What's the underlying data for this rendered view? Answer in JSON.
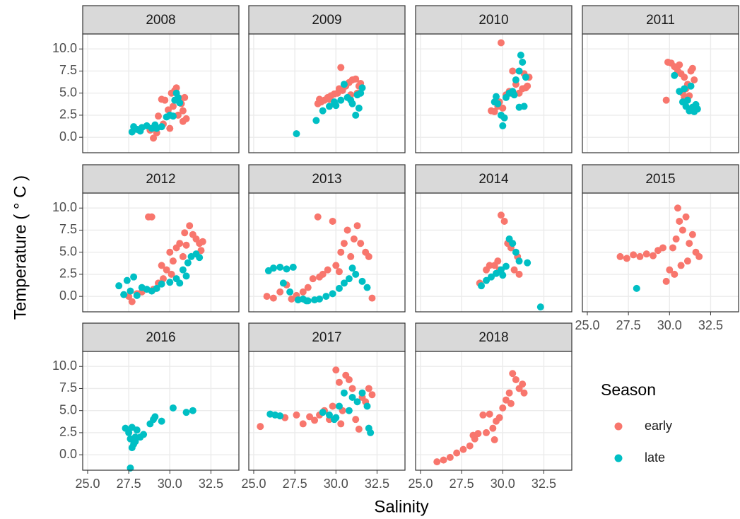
{
  "chart_data": {
    "type": "scatter",
    "x_label": "Salinity",
    "y_label": "Temperature ( ° C )",
    "legend_title": "Season",
    "series": [
      {
        "name": "early",
        "color": "#F8766D"
      },
      {
        "name": "late",
        "color": "#00BFC4"
      }
    ],
    "xlim": [
      24.7,
      34.2
    ],
    "ylim": [
      -1.75,
      11.7
    ],
    "xticks": [
      {
        "value": 25,
        "label": "25.0"
      },
      27.5,
      {
        "value": 30,
        "label": "30.0"
      },
      32.5
    ],
    "yticks": [
      {
        "value": 0,
        "label": "0.0"
      },
      2.5,
      {
        "value": 5,
        "label": "5.0"
      },
      7.5,
      {
        "value": 10,
        "label": "10.0"
      }
    ],
    "grid": true,
    "panels": [
      {
        "title": "2008",
        "series": [
          {
            "x": [
              29.0,
              29.2,
              29.3,
              29.5,
              29.7,
              29.9,
              30.0,
              30.2,
              30.3,
              30.4,
              30.5,
              30.6,
              30.7,
              30.8,
              30.9,
              31.0,
              30.8,
              28.8,
              29.6,
              30.1
            ],
            "y": [
              -0.1,
              0.5,
              2.4,
              4.3,
              4.2,
              3.1,
              1.0,
              3.5,
              5.3,
              5.6,
              2.5,
              4.4,
              3.8,
              3.0,
              4.5,
              2.1,
              1.8,
              0.8,
              1.5,
              5.0
            ]
          },
          {
            "x": [
              27.7,
              27.8,
              28.0,
              28.3,
              28.6,
              28.9,
              29.2,
              29.5,
              29.8,
              30.0,
              30.2,
              30.3,
              30.4,
              30.5,
              30.6,
              29.1,
              28.2
            ],
            "y": [
              0.6,
              1.2,
              0.9,
              1.1,
              1.3,
              1.0,
              1.0,
              1.2,
              2.3,
              2.5,
              2.4,
              4.2,
              5.0,
              4.5,
              3.9,
              1.4,
              0.7
            ]
          }
        ]
      },
      {
        "title": "2009",
        "series": [
          {
            "x": [
              28.9,
              29.1,
              29.3,
              29.5,
              29.7,
              29.9,
              30.1,
              30.3,
              30.4,
              30.6,
              30.8,
              31.0,
              31.2,
              31.4,
              31.5,
              31.3,
              30.9,
              29.0,
              29.6,
              30.2
            ],
            "y": [
              3.8,
              4.0,
              4.2,
              4.5,
              4.7,
              4.9,
              5.0,
              7.9,
              5.3,
              5.8,
              6.2,
              6.5,
              6.6,
              5.8,
              6.1,
              5.0,
              4.8,
              4.3,
              4.3,
              5.5
            ]
          },
          {
            "x": [
              27.6,
              28.8,
              29.2,
              29.6,
              30.0,
              30.3,
              30.5,
              30.7,
              31.0,
              31.3,
              31.5,
              31.6,
              31.4,
              31.2,
              30.9,
              29.9
            ],
            "y": [
              0.4,
              1.9,
              3.0,
              3.5,
              3.6,
              4.2,
              6.0,
              4.5,
              3.8,
              4.8,
              5.0,
              5.6,
              3.3,
              2.5,
              4.2,
              4.0
            ]
          }
        ]
      },
      {
        "title": "2010",
        "series": [
          {
            "x": [
              29.3,
              29.5,
              29.7,
              29.9,
              30.0,
              30.2,
              30.4,
              30.6,
              30.8,
              31.0,
              31.2,
              31.4,
              31.5,
              31.6,
              31.3,
              30.5,
              29.8
            ],
            "y": [
              3.0,
              2.9,
              3.5,
              10.7,
              3.3,
              4.8,
              5.2,
              7.5,
              6.0,
              5.0,
              5.5,
              5.6,
              5.8,
              6.8,
              7.2,
              5.0,
              4.0
            ]
          },
          {
            "x": [
              29.5,
              29.7,
              29.9,
              30.0,
              30.1,
              30.2,
              30.4,
              30.6,
              30.8,
              31.0,
              31.1,
              31.2,
              31.3,
              31.0,
              30.7,
              31.4,
              29.6
            ],
            "y": [
              4.0,
              3.8,
              2.5,
              1.3,
              2.2,
              4.5,
              5.0,
              5.2,
              6.5,
              7.5,
              9.3,
              8.5,
              3.5,
              3.4,
              4.8,
              6.8,
              4.6
            ]
          }
        ]
      },
      {
        "title": "2011",
        "series": [
          {
            "x": [
              29.8,
              29.9,
              30.1,
              30.3,
              30.5,
              30.7,
              30.9,
              31.1,
              31.3,
              31.5,
              31.0,
              30.8,
              31.2,
              30.6,
              31.4,
              30.9
            ],
            "y": [
              4.2,
              8.5,
              8.4,
              8.0,
              7.5,
              7.2,
              6.8,
              6.0,
              7.5,
              6.5,
              5.5,
              5.0,
              4.7,
              8.2,
              7.8,
              4.5
            ]
          },
          {
            "x": [
              30.3,
              30.6,
              30.8,
              31.0,
              31.2,
              31.4,
              31.6,
              31.5,
              31.3,
              30.9,
              31.1,
              31.7
            ],
            "y": [
              7.0,
              5.2,
              4.0,
              3.5,
              3.0,
              3.4,
              3.7,
              2.9,
              5.8,
              5.5,
              4.2,
              3.2
            ]
          }
        ]
      },
      {
        "title": "2012",
        "series": [
          {
            "x": [
              27.5,
              27.7,
              28.0,
              28.3,
              28.7,
              28.9,
              29.0,
              29.3,
              29.6,
              29.8,
              30.0,
              30.2,
              30.4,
              30.6,
              30.8,
              31.0,
              31.2,
              31.4,
              31.6,
              31.8,
              31.9,
              32.0,
              30.1,
              29.5,
              30.9
            ],
            "y": [
              0.0,
              -0.6,
              0.3,
              0.5,
              9.0,
              9.0,
              0.8,
              1.5,
              2.0,
              3.0,
              5.0,
              4.0,
              5.5,
              6.0,
              4.5,
              5.8,
              8.0,
              7.0,
              6.5,
              6.0,
              5.2,
              6.2,
              2.5,
              3.5,
              7.2
            ]
          },
          {
            "x": [
              26.9,
              27.2,
              27.4,
              27.6,
              27.8,
              28.0,
              28.3,
              28.6,
              28.9,
              29.2,
              29.5,
              30.0,
              30.4,
              30.8,
              31.0,
              31.3,
              31.6,
              31.8,
              31.1,
              30.6
            ],
            "y": [
              1.2,
              0.2,
              1.8,
              0.6,
              2.2,
              0.1,
              1.0,
              0.8,
              0.6,
              0.9,
              1.4,
              1.6,
              2.0,
              3.0,
              2.3,
              4.5,
              4.8,
              4.4,
              3.8,
              1.5
            ]
          }
        ]
      },
      {
        "title": "2013",
        "series": [
          {
            "x": [
              25.8,
              26.2,
              26.6,
              27.0,
              27.3,
              27.6,
              28.0,
              28.3,
              28.6,
              28.9,
              29.2,
              29.5,
              29.8,
              30.0,
              30.3,
              30.5,
              30.7,
              30.9,
              31.1,
              31.3,
              31.5,
              31.8,
              32.0,
              32.2,
              30.2,
              29.0
            ],
            "y": [
              0.0,
              -0.2,
              0.5,
              1.3,
              -0.3,
              0.1,
              0.5,
              1.0,
              2.0,
              9.0,
              2.5,
              3.0,
              8.5,
              3.5,
              5.0,
              6.0,
              7.5,
              4.5,
              6.5,
              8.0,
              6.0,
              5.0,
              4.5,
              -0.2,
              2.8,
              2.2
            ]
          },
          {
            "x": [
              25.9,
              26.2,
              26.6,
              27.0,
              27.4,
              27.7,
              28.0,
              28.3,
              28.7,
              29.0,
              29.4,
              29.8,
              30.2,
              30.5,
              30.8,
              31.0,
              31.2,
              31.6,
              31.9,
              26.8,
              27.2,
              28.2
            ],
            "y": [
              2.9,
              3.2,
              3.3,
              3.1,
              3.3,
              -0.4,
              -0.3,
              -0.5,
              -0.4,
              -0.3,
              0.0,
              0.3,
              0.9,
              1.5,
              2.0,
              3.2,
              2.5,
              1.7,
              1.0,
              1.5,
              0.5,
              -0.5
            ]
          }
        ]
      },
      {
        "title": "2014",
        "series": [
          {
            "x": [
              28.6,
              29.0,
              29.2,
              29.5,
              29.7,
              29.9,
              30.1,
              30.3,
              30.5,
              30.7,
              30.9,
              31.0,
              29.8
            ],
            "y": [
              1.5,
              3.0,
              3.5,
              3.5,
              4.0,
              9.2,
              8.5,
              6.0,
              5.5,
              3.0,
              4.5,
              2.5,
              3.0
            ]
          },
          {
            "x": [
              28.7,
              29.0,
              29.3,
              29.6,
              29.9,
              30.2,
              30.4,
              30.6,
              30.8,
              31.0,
              31.5,
              32.3,
              30.0
            ],
            "y": [
              1.2,
              1.8,
              2.2,
              2.6,
              3.0,
              3.4,
              6.5,
              6.0,
              5.0,
              4.0,
              3.8,
              -1.2,
              2.4
            ]
          }
        ]
      },
      {
        "title": "2015",
        "series": [
          {
            "x": [
              27.0,
              27.4,
              27.8,
              28.2,
              28.6,
              29.0,
              29.3,
              29.6,
              29.8,
              30.0,
              30.2,
              30.4,
              30.5,
              30.6,
              30.8,
              31.0,
              31.2,
              31.4,
              31.6,
              31.8,
              30.7,
              31.1,
              30.3
            ],
            "y": [
              4.5,
              4.3,
              4.7,
              4.5,
              4.8,
              4.6,
              5.2,
              5.5,
              1.7,
              3.0,
              5.5,
              6.5,
              10.0,
              8.5,
              7.5,
              9.0,
              6.0,
              7.0,
              5.0,
              4.5,
              3.5,
              4.0,
              2.5
            ]
          },
          {
            "x": [
              28.0
            ],
            "y": [
              0.9
            ]
          }
        ]
      },
      {
        "title": "2016",
        "series": [
          {
            "x": [],
            "y": []
          },
          {
            "x": [
              27.3,
              27.5,
              27.6,
              27.7,
              27.8,
              27.9,
              28.0,
              27.6,
              27.7,
              28.2,
              28.4,
              28.8,
              29.0,
              29.1,
              29.5,
              30.2,
              31.0,
              31.4,
              27.9
            ],
            "y": [
              3.0,
              2.5,
              1.8,
              3.1,
              1.2,
              2.0,
              2.8,
              -1.5,
              0.8,
              2.0,
              2.3,
              3.5,
              4.0,
              4.3,
              3.8,
              5.3,
              4.8,
              5.0,
              1.5
            ]
          }
        ]
      },
      {
        "title": "2017",
        "series": [
          {
            "x": [
              25.4,
              26.9,
              27.6,
              28.0,
              28.4,
              28.7,
              29.0,
              29.3,
              29.6,
              29.8,
              30.0,
              30.2,
              30.4,
              30.6,
              30.8,
              31.0,
              31.2,
              31.4,
              31.6,
              31.8,
              32.0,
              32.2,
              30.3
            ],
            "y": [
              3.2,
              4.2,
              4.5,
              3.5,
              4.3,
              3.9,
              4.5,
              5.0,
              4.0,
              5.5,
              9.6,
              8.2,
              5.0,
              9.0,
              8.5,
              7.5,
              4.0,
              2.9,
              6.5,
              6.0,
              7.5,
              6.8,
              3.5
            ]
          },
          {
            "x": [
              26.0,
              26.3,
              26.6,
              29.2,
              29.6,
              29.9,
              30.2,
              30.5,
              30.8,
              31.0,
              31.3,
              31.6,
              31.9,
              32.0,
              32.1,
              30.0
            ],
            "y": [
              4.6,
              4.5,
              4.4,
              4.8,
              4.5,
              4.0,
              5.5,
              7.0,
              5.0,
              6.5,
              6.0,
              7.0,
              5.5,
              3.0,
              2.5,
              4.2
            ]
          }
        ]
      },
      {
        "title": "2018",
        "series": [
          {
            "x": [
              26.0,
              26.4,
              26.8,
              27.2,
              27.6,
              28.0,
              28.3,
              28.5,
              28.8,
              29.0,
              29.2,
              29.4,
              29.6,
              29.8,
              30.0,
              30.2,
              30.4,
              30.6,
              30.8,
              31.0,
              31.2,
              31.3,
              30.5,
              29.5,
              28.2
            ],
            "y": [
              -0.8,
              -0.6,
              -0.3,
              0.2,
              0.6,
              1.0,
              1.8,
              2.4,
              4.5,
              2.5,
              4.6,
              3.0,
              3.8,
              4.2,
              5.3,
              6.2,
              7.0,
              9.2,
              8.5,
              7.5,
              8.0,
              7.0,
              5.8,
              1.7,
              2.2
            ]
          },
          {
            "x": [],
            "y": []
          }
        ]
      }
    ]
  }
}
